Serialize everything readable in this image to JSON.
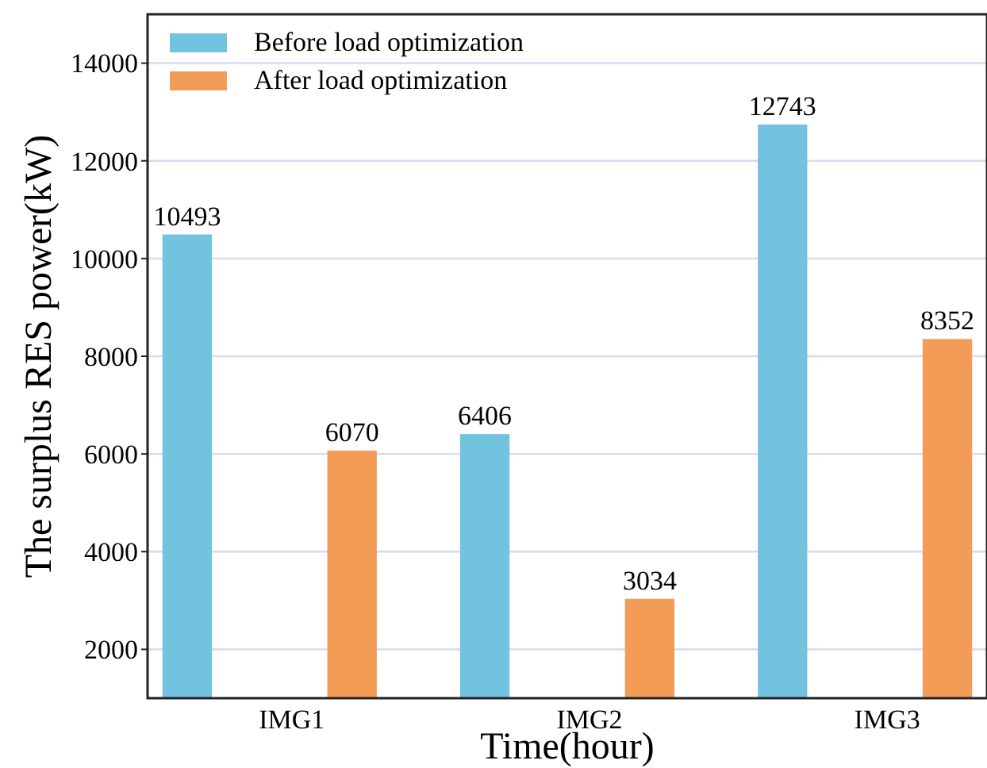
{
  "chart_data": {
    "type": "bar",
    "xlabel": "Time(hour)",
    "ylabel": "The surplus RES power(kW)",
    "categories": [
      "IMG1",
      "IMG2",
      "IMG3"
    ],
    "series": [
      {
        "name": "Before load optimization",
        "color": "#72c3df",
        "values": [
          10493,
          6406,
          12743
        ]
      },
      {
        "name": "After load optimization",
        "color": "#f39c58",
        "values": [
          6070,
          3034,
          8352
        ]
      }
    ],
    "ylim": [
      1000,
      15000
    ],
    "yticks": [
      2000,
      4000,
      6000,
      8000,
      10000,
      12000,
      14000
    ],
    "grid": "y",
    "legend": "top left",
    "data_labels": true
  }
}
